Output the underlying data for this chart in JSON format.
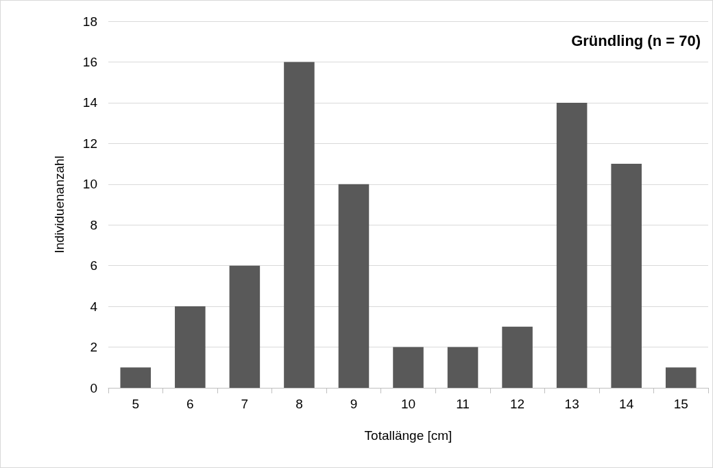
{
  "chart_data": {
    "type": "bar",
    "title": "Gründling (n = 70)",
    "xlabel": "Totallänge [cm]",
    "ylabel": "Individuenanzahl",
    "categories": [
      "5",
      "6",
      "7",
      "8",
      "9",
      "10",
      "11",
      "12",
      "13",
      "14",
      "15"
    ],
    "values": [
      1,
      4,
      6,
      16,
      10,
      2,
      2,
      3,
      14,
      11,
      1
    ],
    "color": "#595959",
    "ylim": [
      0,
      18
    ],
    "yticks": [
      0,
      2,
      4,
      6,
      8,
      10,
      12,
      14,
      16,
      18
    ],
    "grid": "y"
  }
}
